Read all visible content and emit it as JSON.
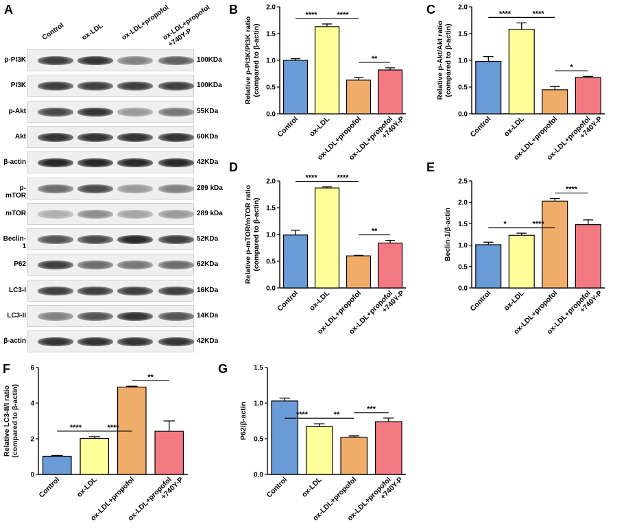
{
  "panel_letters": [
    "A",
    "B",
    "C",
    "D",
    "E",
    "F",
    "G"
  ],
  "blot": {
    "lanes": [
      "Control",
      "ox-LDL",
      "ox-LDL+propofol",
      "ox-LDL+propofol\n+740Y-P"
    ],
    "rows": [
      {
        "protein": "p-PI3K",
        "kda": "100KDa",
        "intensity": [
          0.85,
          0.9,
          0.55,
          0.7
        ]
      },
      {
        "protein": "PI3K",
        "kda": "100KDa",
        "intensity": [
          0.85,
          0.85,
          0.85,
          0.85
        ]
      },
      {
        "protein": "p-Akt",
        "kda": "55KDa",
        "intensity": [
          0.8,
          0.9,
          0.45,
          0.6
        ]
      },
      {
        "protein": "Akt",
        "kda": "60KDa",
        "intensity": [
          0.9,
          0.9,
          0.9,
          0.9
        ]
      },
      {
        "protein": "β-actin",
        "kda": "42KDa",
        "intensity": [
          0.95,
          0.95,
          0.95,
          0.95
        ]
      },
      {
        "protein": "p-mTOR",
        "kda": "289 kDa",
        "intensity": [
          0.65,
          0.8,
          0.45,
          0.55
        ]
      },
      {
        "protein": "mTOR",
        "kda": "289 kDa",
        "intensity": [
          0.35,
          0.5,
          0.4,
          0.45
        ]
      },
      {
        "protein": "Beclin-1",
        "kda": "52KDa",
        "intensity": [
          0.75,
          0.8,
          0.95,
          0.85
        ]
      },
      {
        "protein": "P62",
        "kda": "62KDa",
        "intensity": [
          0.85,
          0.65,
          0.6,
          0.65
        ]
      },
      {
        "protein": "LC3-I",
        "kda": "16KDa",
        "intensity": [
          0.85,
          0.85,
          0.85,
          0.85
        ]
      },
      {
        "protein": "LC3-II",
        "kda": "14KDa",
        "intensity": [
          0.55,
          0.75,
          0.9,
          0.75
        ]
      },
      {
        "protein": "β-actin",
        "kda": "42KDa",
        "intensity": [
          0.9,
          0.9,
          0.9,
          0.9
        ]
      }
    ]
  },
  "chart_data": [
    {
      "id": "B",
      "type": "bar",
      "categories": [
        "Control",
        "ox-LDL",
        "ox-LDL+propofol",
        "ox-LDL+propofol\n+740Y-P"
      ],
      "values": [
        1.0,
        1.63,
        0.63,
        0.82
      ],
      "errors": [
        0.03,
        0.05,
        0.05,
        0.04
      ],
      "ylabel": "Relative p-PI3K/PI3K ratio\n(compared to β-actin)",
      "ylim": [
        0,
        2.0
      ],
      "yticks": [
        "0.0",
        "0.5",
        "1.0",
        "1.5",
        "2.0"
      ],
      "sig": [
        {
          "from": 0,
          "to": 1,
          "label": "****"
        },
        {
          "from": 1,
          "to": 2,
          "label": "****"
        },
        {
          "from": 2,
          "to": 3,
          "label": "**"
        }
      ]
    },
    {
      "id": "C",
      "type": "bar",
      "categories": [
        "Control",
        "ox-LDL",
        "ox-LDL+propofol",
        "ox-LDL+propofol\n+740Y-P"
      ],
      "values": [
        0.98,
        1.58,
        0.45,
        0.68
      ],
      "errors": [
        0.09,
        0.12,
        0.06,
        0.02
      ],
      "ylabel": "Relative p-Akt/Akt ratio\n(compared to β-actin)",
      "ylim": [
        0,
        2.0
      ],
      "yticks": [
        "0.0",
        "0.5",
        "1.0",
        "1.5",
        "2.0"
      ],
      "sig": [
        {
          "from": 0,
          "to": 1,
          "label": "****"
        },
        {
          "from": 1,
          "to": 2,
          "label": "****"
        },
        {
          "from": 2,
          "to": 3,
          "label": "*"
        }
      ]
    },
    {
      "id": "D",
      "type": "bar",
      "categories": [
        "Control",
        "ox-LDL",
        "ox-LDL+propofol",
        "ox-LDL+propofol\n+740Y-P"
      ],
      "values": [
        0.99,
        1.87,
        0.6,
        0.84
      ],
      "errors": [
        0.09,
        0.02,
        0.01,
        0.05
      ],
      "ylabel": "Relative p-mTOR/mTOR ratio\n(compared to β-actin)",
      "ylim": [
        0,
        2.0
      ],
      "yticks": [
        "0.0",
        "0.5",
        "1.0",
        "1.5",
        "2.0"
      ],
      "sig": [
        {
          "from": 0,
          "to": 1,
          "label": "****"
        },
        {
          "from": 1,
          "to": 2,
          "label": "****"
        },
        {
          "from": 2,
          "to": 3,
          "label": "**"
        }
      ]
    },
    {
      "id": "E",
      "type": "bar",
      "categories": [
        "Control",
        "ox-LDL",
        "ox-LDL+propofol",
        "ox-LDL+propofol\n+740Y-P"
      ],
      "values": [
        1.01,
        1.23,
        2.03,
        1.48
      ],
      "errors": [
        0.06,
        0.05,
        0.06,
        0.11
      ],
      "ylabel": "Beclin-1/β-actin",
      "ylim": [
        0,
        2.5
      ],
      "yticks": [
        "0.0",
        "0.5",
        "1.0",
        "1.5",
        "2.0",
        "2.5"
      ],
      "sig": [
        {
          "from": 0,
          "to": 1,
          "label": "*"
        },
        {
          "from": 1,
          "to": 2,
          "label": "****"
        },
        {
          "from": 2,
          "to": 3,
          "label": "****"
        }
      ]
    },
    {
      "id": "F",
      "type": "bar",
      "categories": [
        "Control",
        "ox-LDL",
        "ox-LDL+propofol",
        "ox-LDL+propofol\n+740Y-P"
      ],
      "values": [
        1.02,
        2.02,
        4.9,
        2.42
      ],
      "errors": [
        0.04,
        0.1,
        0.05,
        0.58
      ],
      "ylabel": "Relative LC3-II/I ratio\n(compared to β-actin)",
      "ylim": [
        0,
        6
      ],
      "yticks": [
        "0",
        "2",
        "4",
        "6"
      ],
      "sig": [
        {
          "from": 0,
          "to": 1,
          "label": "****"
        },
        {
          "from": 1,
          "to": 2,
          "label": "****"
        },
        {
          "from": 2,
          "to": 3,
          "label": "**"
        }
      ]
    },
    {
      "id": "G",
      "type": "bar",
      "categories": [
        "Control",
        "ox-LDL",
        "ox-LDL+propofol",
        "ox-LDL+propofol\n+740Y-P"
      ],
      "values": [
        1.03,
        0.67,
        0.52,
        0.74
      ],
      "errors": [
        0.04,
        0.04,
        0.02,
        0.05
      ],
      "ylabel": "P62/β-actin",
      "ylim": [
        0,
        1.5
      ],
      "yticks": [
        "0.0",
        "0.5",
        "1.0",
        "1.5"
      ],
      "sig": [
        {
          "from": 0,
          "to": 1,
          "label": "****"
        },
        {
          "from": 1,
          "to": 2,
          "label": "**"
        },
        {
          "from": 2,
          "to": 3,
          "label": "***"
        }
      ]
    }
  ],
  "colors": {
    "bars": [
      "#6a9bd6",
      "#ffff99",
      "#f0ad6a",
      "#f37a83"
    ],
    "axis": "#000000"
  }
}
